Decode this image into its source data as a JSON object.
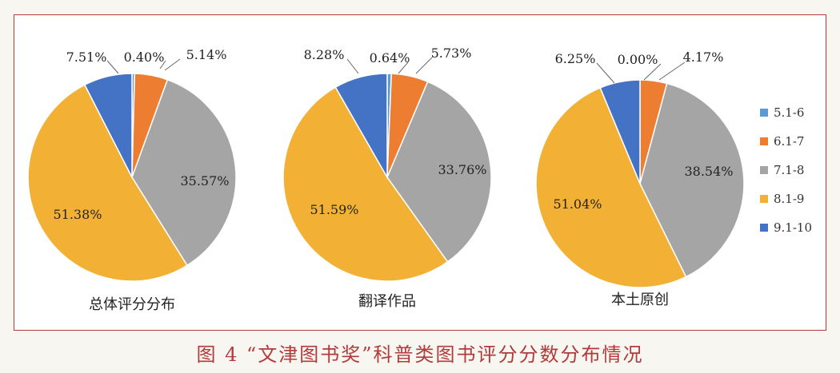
{
  "figure_caption": "图 4 “文津图书奖”科普类图书评分分数分布情况",
  "legend": [
    {
      "label": "5.1-6",
      "color": "#5b9bd5"
    },
    {
      "label": "6.1-7",
      "color": "#ed7d31"
    },
    {
      "label": "7.1-8",
      "color": "#a5a5a5"
    },
    {
      "label": "8.1-9",
      "color": "#f2b134"
    },
    {
      "label": "9.1-10",
      "color": "#4472c4"
    }
  ],
  "chart_data": [
    {
      "type": "pie",
      "title": "总体评分分布",
      "categories": [
        "5.1-6",
        "6.1-7",
        "7.1-8",
        "8.1-9",
        "9.1-10"
      ],
      "values": [
        0.4,
        5.14,
        35.57,
        51.38,
        7.51
      ],
      "labels": [
        "0.40%",
        "5.14%",
        "35.57%",
        "51.38%",
        "7.51%"
      ]
    },
    {
      "type": "pie",
      "title": "翻译作品",
      "categories": [
        "5.1-6",
        "6.1-7",
        "7.1-8",
        "8.1-9",
        "9.1-10"
      ],
      "values": [
        0.64,
        5.73,
        33.76,
        51.59,
        8.28
      ],
      "labels": [
        "0.64%",
        "5.73%",
        "33.76%",
        "51.59%",
        "8.28%"
      ]
    },
    {
      "type": "pie",
      "title": "本土原创",
      "categories": [
        "5.1-6",
        "6.1-7",
        "7.1-8",
        "8.1-9",
        "9.1-10"
      ],
      "values": [
        0.0,
        4.17,
        38.54,
        51.04,
        6.25
      ],
      "labels": [
        "0.00%",
        "4.17%",
        "38.54%",
        "51.04%",
        "6.25%"
      ]
    }
  ]
}
